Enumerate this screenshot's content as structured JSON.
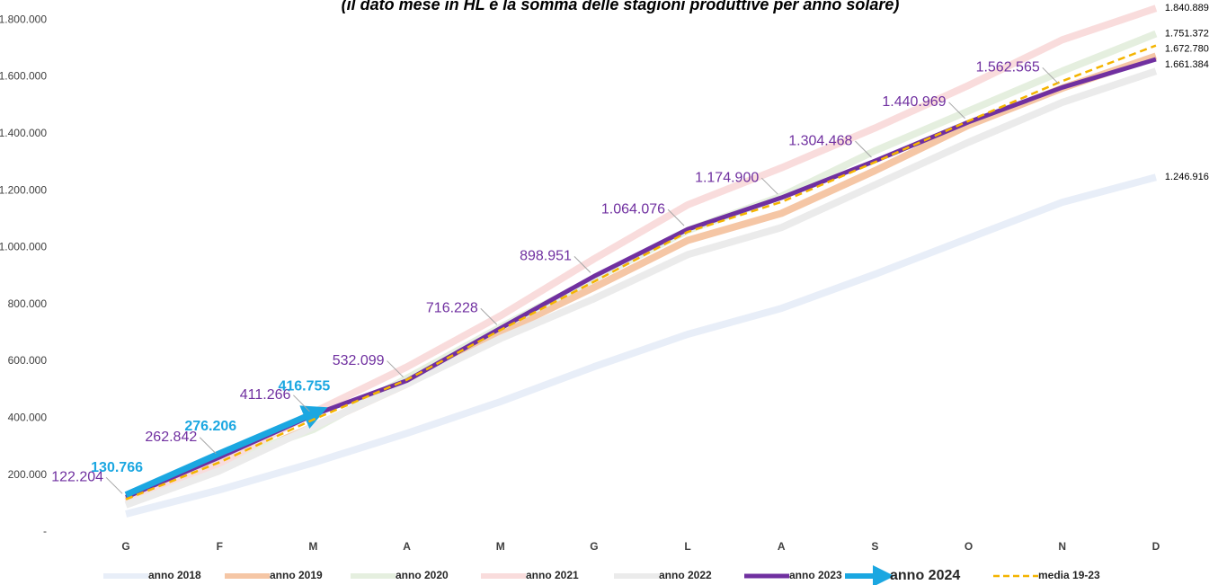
{
  "chart_data": {
    "type": "line",
    "subtitle": "(il dato mese in HL è la somma delle stagioni produttive per anno solare)",
    "categories": [
      "G",
      "F",
      "M",
      "A",
      "M",
      "G",
      "L",
      "A",
      "S",
      "O",
      "N",
      "D"
    ],
    "ylim": [
      0,
      1870000
    ],
    "yticks": [
      {
        "value": 0,
        "label": "-"
      },
      {
        "value": 200000,
        "label": "200.000"
      },
      {
        "value": 400000,
        "label": "400.000"
      },
      {
        "value": 600000,
        "label": "600.000"
      },
      {
        "value": 800000,
        "label": "800.000"
      },
      {
        "value": 1000000,
        "label": "1.000.000"
      },
      {
        "value": 1200000,
        "label": "1.200.000"
      },
      {
        "value": 1400000,
        "label": "1.400.000"
      },
      {
        "value": 1600000,
        "label": "1.600.000"
      },
      {
        "value": 1800000,
        "label": "1.800.000"
      }
    ],
    "series": [
      {
        "name": "anno 2018",
        "color": "#e8eef8",
        "values": [
          63000,
          148000,
          243000,
          347000,
          458000,
          581000,
          695000,
          786000,
          906000,
          1033000,
          1159000,
          1246916
        ],
        "value_labels": [
          null,
          null,
          null,
          null,
          null,
          null,
          null,
          null,
          null,
          null,
          null,
          "1.246.916"
        ]
      },
      {
        "name": "anno 2019",
        "color": "#f5c6a5",
        "values": [
          110000,
          230000,
          370000,
          520000,
          700000,
          860000,
          1025000,
          1120000,
          1270000,
          1430000,
          1560000,
          1672780
        ],
        "value_labels": [
          null,
          null,
          null,
          null,
          null,
          null,
          null,
          null,
          null,
          null,
          null,
          "1.672.780"
        ]
      },
      {
        "name": "anno 2020",
        "color": "#e5efdf",
        "values": [
          115000,
          245000,
          360000,
          540000,
          720000,
          890000,
          1060000,
          1180000,
          1340000,
          1480000,
          1620000,
          1751372
        ],
        "value_labels": [
          null,
          null,
          null,
          null,
          null,
          null,
          null,
          null,
          null,
          null,
          null,
          "1.751.372"
        ]
      },
      {
        "name": "anno 2021",
        "color": "#f9dcdc",
        "values": [
          105000,
          240000,
          420000,
          580000,
          760000,
          960000,
          1150000,
          1280000,
          1420000,
          1570000,
          1730000,
          1840889
        ],
        "value_labels": [
          null,
          null,
          null,
          null,
          null,
          null,
          null,
          null,
          null,
          null,
          null,
          "1.840.889"
        ]
      },
      {
        "name": "anno 2022",
        "color": "#ebebeb",
        "values": [
          95000,
          215000,
          370000,
          520000,
          680000,
          820000,
          975000,
          1070000,
          1220000,
          1370000,
          1510000,
          1620000
        ]
      },
      {
        "name": "anno 2023",
        "color": "#7030a0",
        "values": [
          122204,
          262842,
          411266,
          532099,
          716228,
          898951,
          1064076,
          1174900,
          1304468,
          1440969,
          1562565,
          1661384
        ],
        "value_labels": [
          "122.204",
          "262.842",
          "411.266",
          "532.099",
          "716.228",
          "898.951",
          "1.064.076",
          "1.174.900",
          "1.304.468",
          "1.440.969",
          "1.562.565",
          "1.661.384"
        ]
      },
      {
        "name": "anno 2024",
        "color": "#1ba7e1",
        "values": [
          130766,
          276206,
          416755,
          null,
          null,
          null,
          null,
          null,
          null,
          null,
          null,
          null
        ],
        "value_labels": [
          "130.766",
          "276.206",
          "416.755",
          null,
          null,
          null,
          null,
          null,
          null,
          null,
          null,
          null
        ]
      },
      {
        "name": "media 19-23",
        "color": "#f4b400",
        "dashed": true,
        "values": [
          115000,
          245000,
          395000,
          535000,
          710000,
          880000,
          1055000,
          1160000,
          1300000,
          1445000,
          1585000,
          1710000
        ]
      }
    ]
  }
}
